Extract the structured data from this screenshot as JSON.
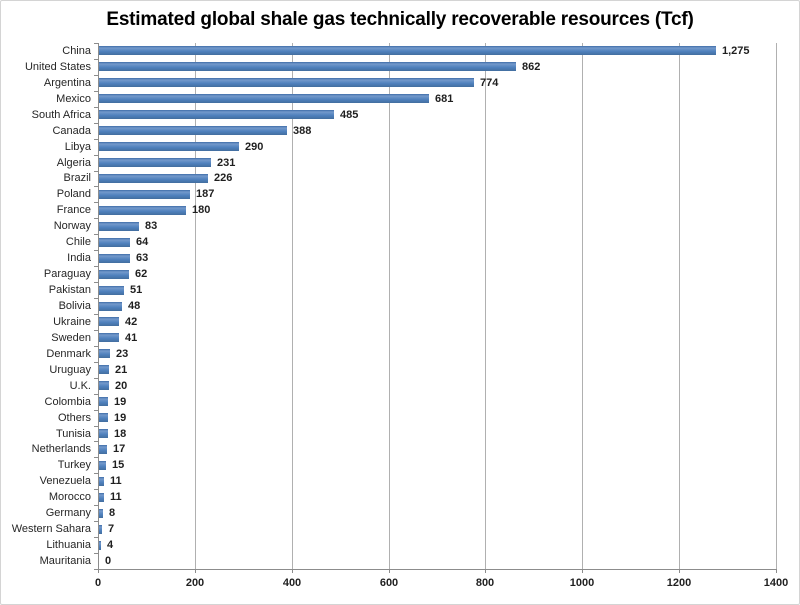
{
  "chart_data": {
    "type": "bar",
    "orientation": "horizontal",
    "title": "Estimated global shale gas technically recoverable resources (Tcf)",
    "categories": [
      "China",
      "United States",
      "Argentina",
      "Mexico",
      "South Africa",
      "Canada",
      "Libya",
      "Algeria",
      "Brazil",
      "Poland",
      "France",
      "Norway",
      "Chile",
      "India",
      "Paraguay",
      "Pakistan",
      "Bolivia",
      "Ukraine",
      "Sweden",
      "Denmark",
      "Uruguay",
      "U.K.",
      "Colombia",
      "Others",
      "Tunisia",
      "Netherlands",
      "Turkey",
      "Venezuela",
      "Morocco",
      "Germany",
      "Western Sahara",
      "Lithuania",
      "Mauritania"
    ],
    "values": [
      1275,
      862,
      774,
      681,
      485,
      388,
      290,
      231,
      226,
      187,
      180,
      83,
      64,
      63,
      62,
      51,
      48,
      42,
      41,
      23,
      21,
      20,
      19,
      19,
      18,
      17,
      15,
      11,
      11,
      8,
      7,
      4,
      0
    ],
    "value_labels": [
      "1,275",
      "862",
      "774",
      "681",
      "485",
      "388",
      "290",
      "231",
      "226",
      "187",
      "180",
      "83",
      "64",
      "63",
      "62",
      "51",
      "48",
      "42",
      "41",
      "23",
      "21",
      "20",
      "19",
      "19",
      "18",
      "17",
      "15",
      "11",
      "11",
      "8",
      "7",
      "4",
      "0"
    ],
    "xlabel": "",
    "ylabel": "",
    "xlim": [
      0,
      1400
    ],
    "x_ticks": [
      0,
      200,
      400,
      600,
      800,
      1000,
      1200,
      1400
    ],
    "grid": true,
    "legend": "none",
    "bar_color": "#4f81bd",
    "gridline_color": "#b0b0b0",
    "axis_color": "#8c8c8c",
    "text_color": "#262626"
  }
}
